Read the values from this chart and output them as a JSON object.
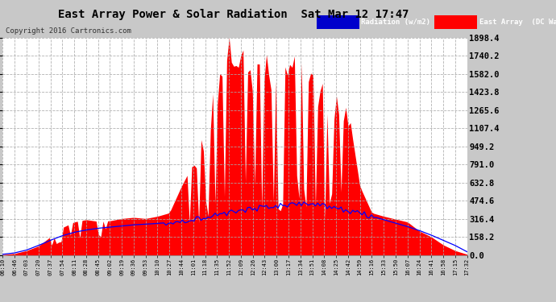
{
  "title": "East Array Power & Solar Radiation  Sat Mar 12 17:47",
  "copyright": "Copyright 2016 Cartronics.com",
  "legend_radiation": "Radiation (w/m2)",
  "legend_east_array": "East Array  (DC Watts)",
  "ylabel_right_ticks": [
    0.0,
    158.2,
    316.4,
    474.6,
    632.8,
    791.0,
    949.2,
    1107.4,
    1265.6,
    1423.8,
    1582.0,
    1740.2,
    1898.4
  ],
  "ymax": 1898.4,
  "background_color": "#c8c8c8",
  "plot_bg_color": "#ffffff",
  "grid_color": "#aaaaaa",
  "red_color": "#ff0000",
  "blue_color": "#0000ff",
  "title_color": "#000000",
  "x_labels": [
    "06:10",
    "06:46",
    "07:03",
    "07:20",
    "07:37",
    "07:54",
    "08:11",
    "08:28",
    "08:45",
    "09:02",
    "09:19",
    "09:36",
    "09:53",
    "10:10",
    "10:27",
    "10:44",
    "11:01",
    "11:18",
    "11:35",
    "11:52",
    "12:09",
    "12:26",
    "12:43",
    "13:00",
    "13:17",
    "13:34",
    "13:51",
    "14:08",
    "14:25",
    "14:42",
    "14:59",
    "15:16",
    "15:33",
    "15:50",
    "16:07",
    "16:24",
    "16:41",
    "16:58",
    "17:15",
    "17:32"
  ]
}
